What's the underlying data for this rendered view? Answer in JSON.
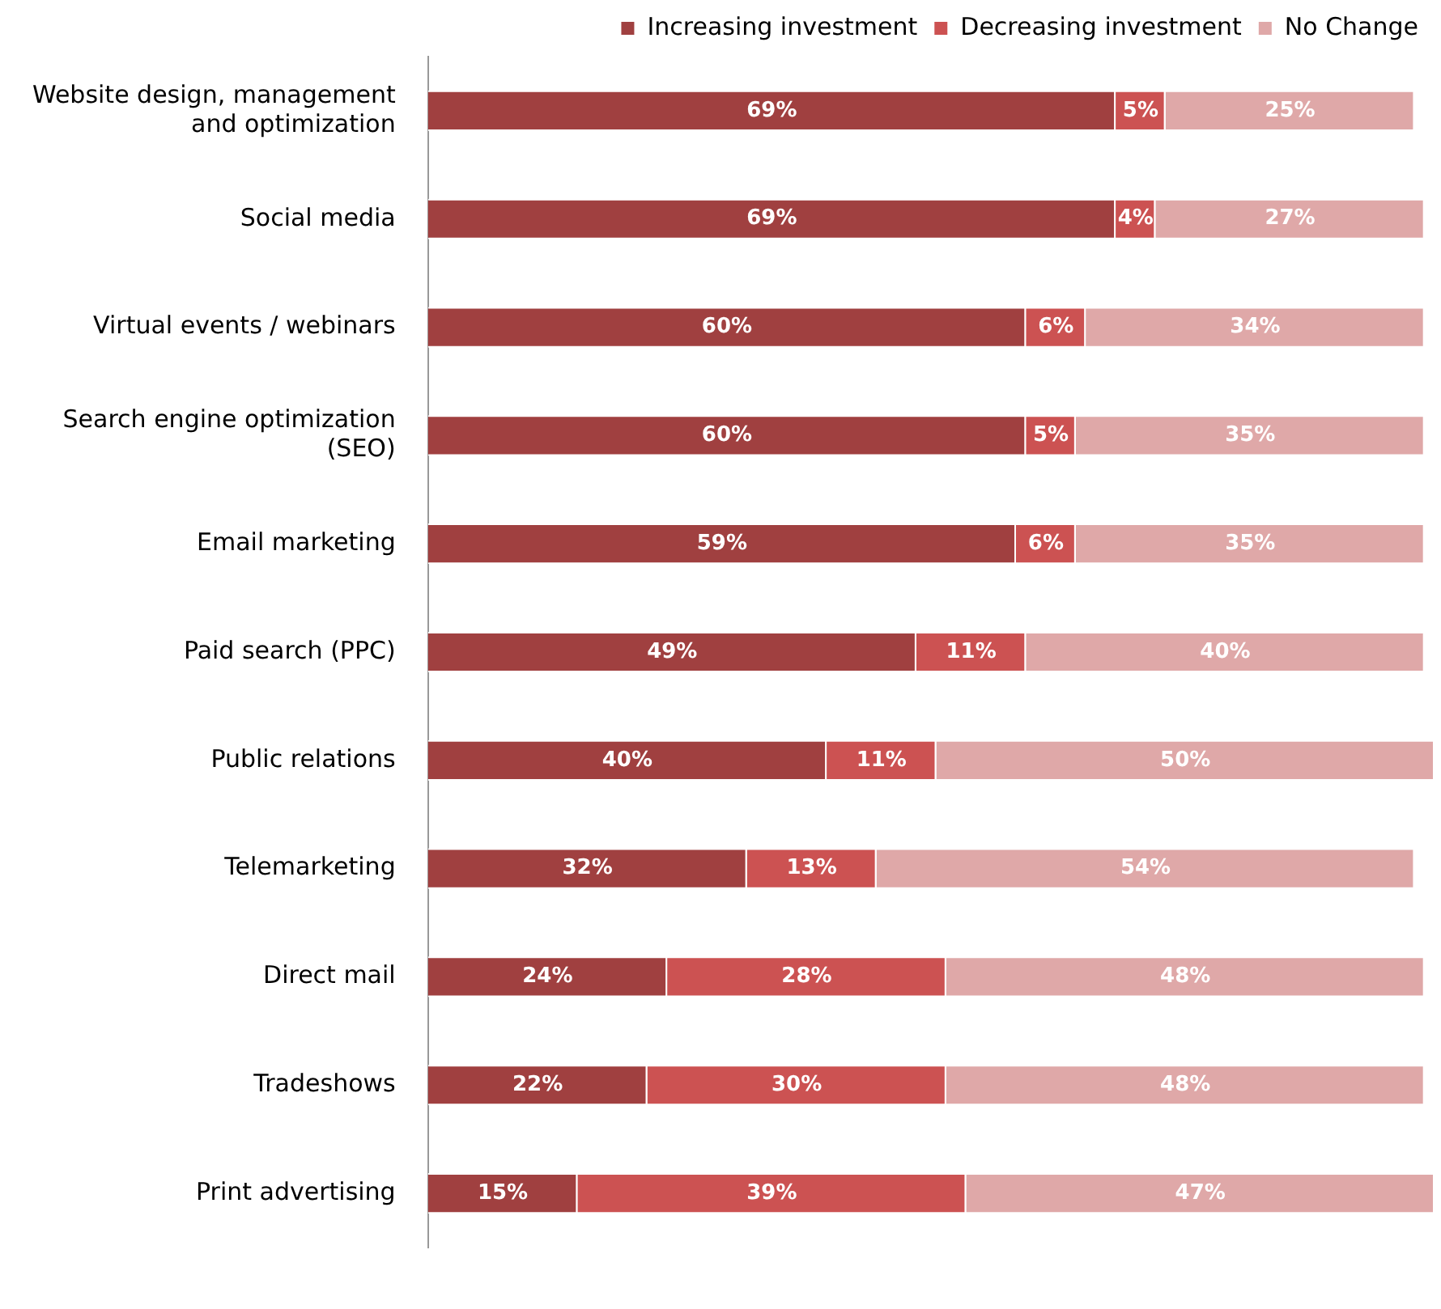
{
  "chart_data": {
    "type": "bar",
    "orientation": "horizontal",
    "stacked": true,
    "legend": "top right",
    "grid": false,
    "categories": [
      "Website design, management and optimization",
      "Social media",
      "Virtual events / webinars",
      "Search engine optimization (SEO)",
      "Email marketing",
      "Paid search (PPC)",
      "Public relations",
      "Telemarketing",
      "Direct mail",
      "Tradeshows",
      "Print advertising"
    ],
    "series": [
      {
        "name": "Increasing investment",
        "color": "#a04040",
        "values": [
          69,
          69,
          60,
          60,
          59,
          49,
          40,
          32,
          24,
          22,
          15
        ],
        "value_labels": [
          "69%",
          "69%",
          "60%",
          "60%",
          "59%",
          "49%",
          "40%",
          "32%",
          "24%",
          "22%",
          "15%"
        ]
      },
      {
        "name": "Decreasing investment",
        "color": "#cc5252",
        "values": [
          5,
          4,
          6,
          5,
          6,
          11,
          11,
          13,
          28,
          30,
          39
        ],
        "value_labels": [
          "5%",
          "4%",
          "6%",
          "5%",
          "6%",
          "11%",
          "11%",
          "13%",
          "28%",
          "30%",
          "39%"
        ]
      },
      {
        "name": "No Change",
        "color": "#dfa8a8",
        "values": [
          25,
          27,
          34,
          35,
          35,
          40,
          50,
          54,
          48,
          48,
          47
        ],
        "value_labels": [
          "25%",
          "27%",
          "34%",
          "35%",
          "35%",
          "40%",
          "50%",
          "54%",
          "48%",
          "48%",
          "47%"
        ]
      }
    ]
  }
}
